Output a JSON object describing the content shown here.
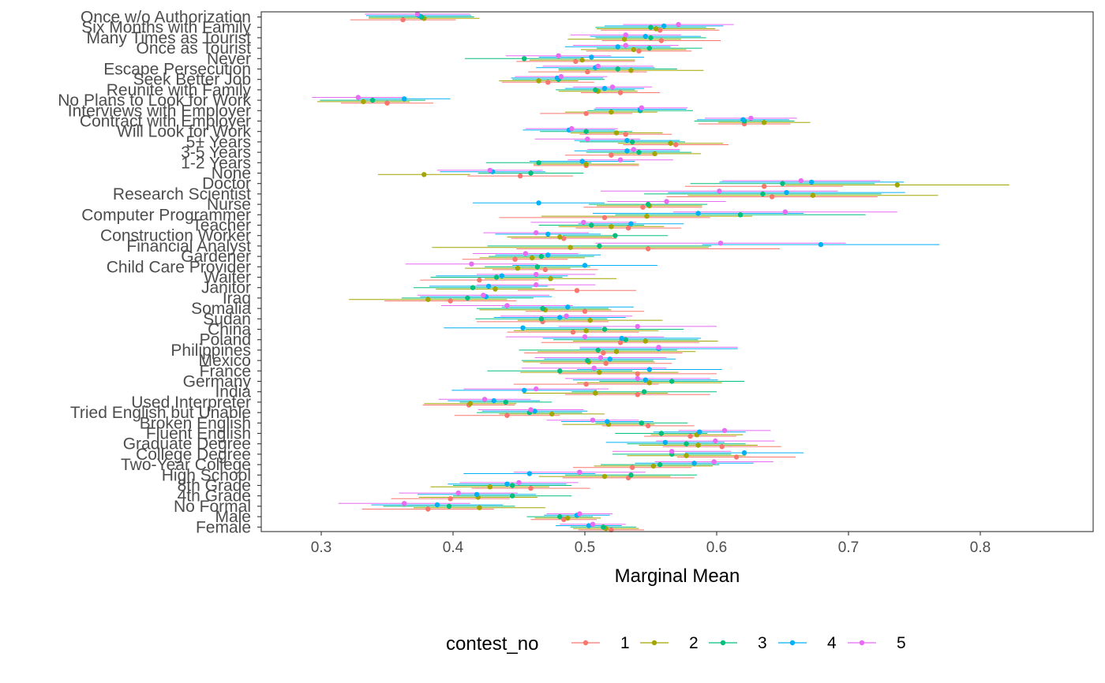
{
  "chart_data": {
    "type": "scatter",
    "subtype": "dot-and-whisker (point with confidence interval)",
    "title": "",
    "xlabel": "Marginal Mean",
    "ylabel": "",
    "xlim": [
      0.25,
      0.885
    ],
    "x_ticks": [
      "0.3",
      "0.4",
      "0.5",
      "0.6",
      "0.7",
      "0.8"
    ],
    "x_tick_values": [
      0.3,
      0.4,
      0.5,
      0.6,
      0.7,
      0.8
    ],
    "grid": false,
    "legend": {
      "title": "contest_no",
      "position": "bottom"
    },
    "ci_halfwidth_note": "",
    "series": [
      {
        "name": "1",
        "color": "#F8766D"
      },
      {
        "name": "2",
        "color": "#A3A500"
      },
      {
        "name": "3",
        "color": "#00BF7D"
      },
      {
        "name": "4",
        "color": "#00B0F6"
      },
      {
        "name": "5",
        "color": "#E76BF3"
      }
    ],
    "categories": [
      "Once w/o Authorization",
      "Six Months with Family",
      "Many Times as Tourist",
      "Once as Tourist",
      "Never",
      "Escape Persecution",
      "Seek Better Job",
      "Reunite with Family",
      "No Plans to Look for Work",
      "Interviews with Employer",
      "Contract with Employer",
      "Will Look for Work",
      "5+ Years",
      "3-5 Years",
      "1-2 Years",
      "None",
      "Doctor",
      "Research Scientist",
      "Nurse",
      "Computer Programmer",
      "Teacher",
      "Construction Worker",
      "Financial Analyst",
      "Gardener",
      "Child Care Provider",
      "Waiter",
      "Janitor",
      "Iraq",
      "Somalia",
      "Sudan",
      "China",
      "Poland",
      "Philippines",
      "Mexico",
      "France",
      "Germany",
      "India",
      "Used Interpreter",
      "Tried English but Unable",
      "Broken English",
      "Fluent English",
      "Graduate Degree",
      "College Degree",
      "Two-Year College",
      "High School",
      "8th Grade",
      "4th Grade",
      "No Formal",
      "Male",
      "Female"
    ],
    "values": [
      [
        0.362,
        0.378,
        0.376,
        0.374,
        0.373
      ],
      [
        0.557,
        0.554,
        0.55,
        0.56,
        0.571
      ],
      [
        0.558,
        0.53,
        0.55,
        0.546,
        0.531
      ],
      [
        0.541,
        0.537,
        0.549,
        0.525,
        0.531
      ],
      [
        0.493,
        0.498,
        0.454,
        0.505,
        0.48
      ],
      [
        0.502,
        0.535,
        0.525,
        0.508,
        0.51
      ],
      [
        0.472,
        0.465,
        0.48,
        0.479,
        0.482
      ],
      [
        0.527,
        0.51,
        0.508,
        0.515,
        0.521
      ],
      [
        0.35,
        0.332,
        0.339,
        0.363,
        0.328
      ],
      [
        0.501,
        0.52,
        0.542,
        0.542,
        0.543
      ],
      [
        0.621,
        0.636,
        0.621,
        0.62,
        0.626
      ],
      [
        0.531,
        0.524,
        0.501,
        0.488,
        0.49
      ],
      [
        0.569,
        0.565,
        0.536,
        0.532,
        0.502
      ],
      [
        0.52,
        0.553,
        0.541,
        0.532,
        0.537
      ],
      [
        0.501,
        0.501,
        0.465,
        0.498,
        0.527
      ],
      [
        0.451,
        0.378,
        0.459,
        0.43,
        0.428
      ],
      [
        0.636,
        0.737,
        0.65,
        0.672,
        0.664
      ],
      [
        0.642,
        0.673,
        0.635,
        0.653,
        0.602
      ],
      [
        0.544,
        0.549,
        0.548,
        0.465,
        0.562
      ],
      [
        0.515,
        0.547,
        0.618,
        0.586,
        0.652
      ],
      [
        0.533,
        0.52,
        0.505,
        0.535,
        0.499
      ],
      [
        0.484,
        0.481,
        0.523,
        0.472,
        0.463
      ],
      [
        0.548,
        0.489,
        0.511,
        0.679,
        0.603
      ],
      [
        0.447,
        0.46,
        0.467,
        0.472,
        0.455
      ],
      [
        0.47,
        0.449,
        0.464,
        0.5,
        0.414
      ],
      [
        0.42,
        0.474,
        0.433,
        0.437,
        0.463
      ],
      [
        0.494,
        0.432,
        0.415,
        0.427,
        0.463
      ],
      [
        0.398,
        0.381,
        0.411,
        0.425,
        0.423
      ],
      [
        0.5,
        0.47,
        0.468,
        0.487,
        0.441
      ],
      [
        0.468,
        0.504,
        0.467,
        0.481,
        0.486
      ],
      [
        0.491,
        0.501,
        0.515,
        0.453,
        0.54
      ],
      [
        0.527,
        0.546,
        0.531,
        0.528,
        0.5
      ],
      [
        0.514,
        0.524,
        0.51,
        0.556,
        0.556
      ],
      [
        0.516,
        0.503,
        0.502,
        0.519,
        0.512
      ],
      [
        0.54,
        0.511,
        0.481,
        0.549,
        0.507
      ],
      [
        0.501,
        0.549,
        0.566,
        0.546,
        0.54
      ],
      [
        0.54,
        0.508,
        0.545,
        0.454,
        0.463
      ],
      [
        0.412,
        0.413,
        0.44,
        0.431,
        0.424
      ],
      [
        0.441,
        0.475,
        0.458,
        0.462,
        0.459
      ],
      [
        0.548,
        0.518,
        0.543,
        0.517,
        0.506
      ],
      [
        0.58,
        0.585,
        0.558,
        0.587,
        0.606
      ],
      [
        0.604,
        0.586,
        0.577,
        0.561,
        0.599
      ],
      [
        0.615,
        0.577,
        0.566,
        0.621,
        0.566
      ],
      [
        0.536,
        0.552,
        0.557,
        0.583,
        0.598
      ],
      [
        0.533,
        0.515,
        0.535,
        0.458,
        0.496
      ],
      [
        0.459,
        0.428,
        0.445,
        0.441,
        0.45
      ],
      [
        0.398,
        0.419,
        0.445,
        0.418,
        0.404
      ],
      [
        0.381,
        0.42,
        0.397,
        0.388,
        0.363
      ],
      [
        0.484,
        0.487,
        0.481,
        0.494,
        0.496
      ],
      [
        0.52,
        0.516,
        0.514,
        0.503,
        0.506
      ]
    ],
    "ci_halfwidth": [
      [
        0.04,
        0.042,
        0.04,
        0.04,
        0.04
      ],
      [
        0.045,
        0.045,
        0.042,
        0.045,
        0.042
      ],
      [
        0.045,
        0.043,
        0.042,
        0.042,
        0.042
      ],
      [
        0.04,
        0.04,
        0.04,
        0.04,
        0.04
      ],
      [
        0.045,
        0.04,
        0.045,
        0.04,
        0.04
      ],
      [
        0.045,
        0.055,
        0.045,
        0.045,
        0.042
      ],
      [
        0.035,
        0.03,
        0.035,
        0.035,
        0.035
      ],
      [
        0.03,
        0.03,
        0.03,
        0.03,
        0.03
      ],
      [
        0.035,
        0.035,
        0.04,
        0.035,
        0.035
      ],
      [
        0.035,
        0.035,
        0.04,
        0.035,
        0.035
      ],
      [
        0.035,
        0.035,
        0.038,
        0.035,
        0.035
      ],
      [
        0.035,
        0.035,
        0.035,
        0.035,
        0.035
      ],
      [
        0.04,
        0.04,
        0.04,
        0.04,
        0.04
      ],
      [
        0.035,
        0.035,
        0.04,
        0.04,
        0.035
      ],
      [
        0.04,
        0.04,
        0.04,
        0.04,
        0.04
      ],
      [
        0.04,
        0.035,
        0.04,
        0.04,
        0.04
      ],
      [
        0.06,
        0.085,
        0.07,
        0.07,
        0.06
      ],
      [
        0.08,
        0.095,
        0.09,
        0.09,
        0.09
      ],
      [
        0.045,
        0.04,
        0.045,
        0.05,
        0.045
      ],
      [
        0.08,
        0.08,
        0.095,
        0.08,
        0.085
      ],
      [
        0.04,
        0.04,
        0.04,
        0.04,
        0.04
      ],
      [
        0.04,
        0.04,
        0.04,
        0.04,
        0.04
      ],
      [
        0.1,
        0.105,
        0.085,
        0.09,
        0.095
      ],
      [
        0.04,
        0.04,
        0.04,
        0.04,
        0.04
      ],
      [
        0.04,
        0.04,
        0.04,
        0.055,
        0.05
      ],
      [
        0.045,
        0.05,
        0.05,
        0.05,
        0.045
      ],
      [
        0.045,
        0.045,
        0.045,
        0.045,
        0.045
      ],
      [
        0.05,
        0.06,
        0.05,
        0.05,
        0.05
      ],
      [
        0.045,
        0.05,
        0.05,
        0.05,
        0.05
      ],
      [
        0.05,
        0.055,
        0.05,
        0.05,
        0.05
      ],
      [
        0.05,
        0.055,
        0.06,
        0.06,
        0.06
      ],
      [
        0.06,
        0.055,
        0.055,
        0.06,
        0.06
      ],
      [
        0.06,
        0.06,
        0.06,
        0.06,
        0.06
      ],
      [
        0.05,
        0.05,
        0.05,
        0.05,
        0.05
      ],
      [
        0.06,
        0.06,
        0.055,
        0.055,
        0.055
      ],
      [
        0.055,
        0.055,
        0.055,
        0.055,
        0.055
      ],
      [
        0.055,
        0.055,
        0.055,
        0.055,
        0.055
      ],
      [
        0.035,
        0.035,
        0.035,
        0.035,
        0.035
      ],
      [
        0.04,
        0.04,
        0.04,
        0.04,
        0.04
      ],
      [
        0.035,
        0.035,
        0.035,
        0.035,
        0.035
      ],
      [
        0.035,
        0.035,
        0.035,
        0.035,
        0.035
      ],
      [
        0.045,
        0.045,
        0.045,
        0.045,
        0.045
      ],
      [
        0.045,
        0.045,
        0.045,
        0.045,
        0.045
      ],
      [
        0.045,
        0.045,
        0.045,
        0.045,
        0.045
      ],
      [
        0.05,
        0.05,
        0.05,
        0.05,
        0.05
      ],
      [
        0.045,
        0.045,
        0.045,
        0.045,
        0.045
      ],
      [
        0.045,
        0.045,
        0.045,
        0.045,
        0.045
      ],
      [
        0.05,
        0.05,
        0.05,
        0.05,
        0.05
      ],
      [
        0.025,
        0.025,
        0.025,
        0.025,
        0.025
      ],
      [
        0.025,
        0.025,
        0.025,
        0.025,
        0.025
      ]
    ]
  }
}
